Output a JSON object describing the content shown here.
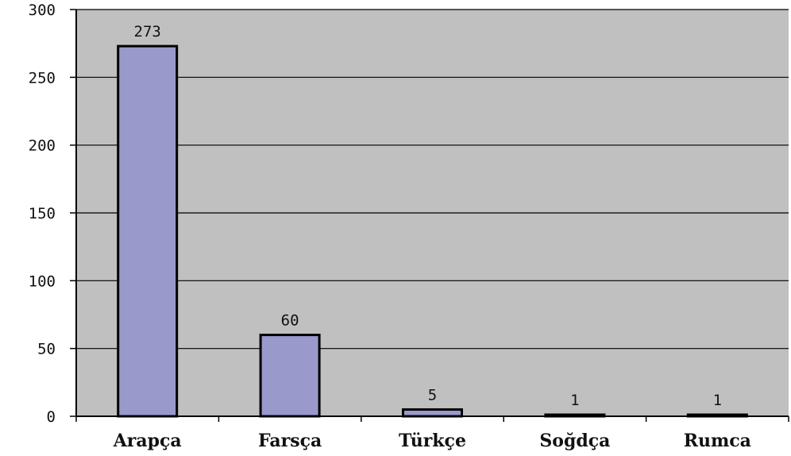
{
  "chart_data": {
    "type": "bar",
    "categories": [
      "Arapça",
      "Farsça",
      "Türkçe",
      "Soğdça",
      "Rumca"
    ],
    "values": [
      273,
      60,
      5,
      1,
      1
    ],
    "data_labels": [
      "273",
      "60",
      "5",
      "1",
      "1"
    ],
    "ylim": [
      0,
      300
    ],
    "yticks": [
      0,
      50,
      100,
      150,
      200,
      250,
      300
    ],
    "ytick_labels": [
      "0",
      "50",
      "100",
      "150",
      "200",
      "250",
      "300"
    ],
    "title": "",
    "xlabel": "",
    "ylabel": "",
    "grid": true,
    "legend": "none",
    "colors": {
      "plot_background": "#c0c0c0",
      "bar_fill": "#9999cc",
      "bar_stroke": "#000000",
      "gridline": "#000000"
    }
  }
}
